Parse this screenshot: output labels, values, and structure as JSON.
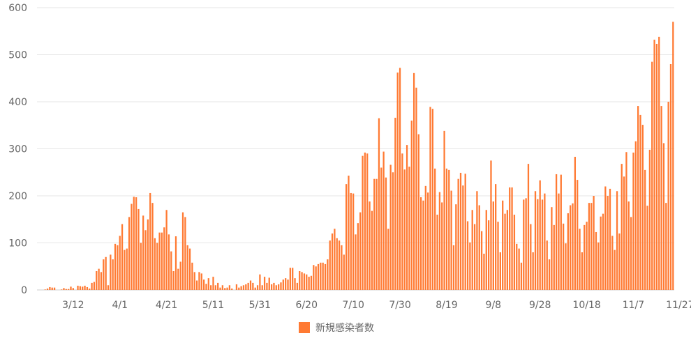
{
  "chart_data": {
    "type": "bar",
    "title": "",
    "xlabel": "",
    "ylabel": "",
    "ylim": [
      0,
      600
    ],
    "yticks": [
      0,
      100,
      200,
      300,
      400,
      500,
      600
    ],
    "grid": true,
    "legend_position": "bottom",
    "start_date": "2020-02-26",
    "x_ticks": [
      {
        "label": "3/12",
        "day": 15
      },
      {
        "label": "4/1",
        "day": 35
      },
      {
        "label": "4/21",
        "day": 55
      },
      {
        "label": "5/11",
        "day": 75
      },
      {
        "label": "5/31",
        "day": 95
      },
      {
        "label": "6/20",
        "day": 115
      },
      {
        "label": "7/10",
        "day": 135
      },
      {
        "label": "7/30",
        "day": 155
      },
      {
        "label": "8/19",
        "day": 175
      },
      {
        "label": "9/8",
        "day": 195
      },
      {
        "label": "9/28",
        "day": 215
      },
      {
        "label": "10/18",
        "day": 235
      },
      {
        "label": "11/7",
        "day": 255
      },
      {
        "label": "11/27",
        "day": 275
      }
    ],
    "series": [
      {
        "name": "新規感染者数",
        "color": "#ff7a33",
        "values": [
          0,
          0,
          0,
          1,
          3,
          6,
          5,
          5,
          0,
          0,
          1,
          4,
          2,
          2,
          7,
          4,
          0,
          9,
          8,
          7,
          9,
          6,
          3,
          15,
          17,
          40,
          45,
          38,
          65,
          70,
          10,
          75,
          65,
          98,
          95,
          115,
          140,
          85,
          88,
          155,
          183,
          198,
          197,
          172,
          100,
          158,
          127,
          150,
          206,
          185,
          110,
          100,
          122,
          122,
          133,
          170,
          118,
          82,
          40,
          114,
          45,
          60,
          165,
          155,
          95,
          88,
          58,
          38,
          20,
          38,
          35,
          22,
          13,
          25,
          10,
          28,
          10,
          15,
          5,
          10,
          4,
          5,
          10,
          3,
          0,
          12,
          5,
          8,
          10,
          12,
          15,
          20,
          15,
          5,
          10,
          33,
          10,
          28,
          15,
          26,
          12,
          15,
          10,
          12,
          16,
          22,
          25,
          22,
          47,
          47,
          25,
          15,
          40,
          38,
          35,
          33,
          28,
          30,
          53,
          50,
          55,
          58,
          58,
          55,
          65,
          105,
          120,
          130,
          110,
          105,
          95,
          75,
          225,
          243,
          206,
          205,
          118,
          142,
          165,
          285,
          292,
          290,
          188,
          168,
          236,
          236,
          365,
          260,
          294,
          239,
          130,
          266,
          250,
          366,
          462,
          472,
          290,
          256,
          308,
          262,
          360,
          461,
          430,
          331,
          197,
          190,
          221,
          207,
          389,
          385,
          258,
          160,
          208,
          186,
          338,
          258,
          255,
          211,
          95,
          182,
          236,
          249,
          222,
          247,
          146,
          101,
          170,
          140,
          210,
          180,
          125,
          77,
          170,
          148,
          275,
          188,
          225,
          145,
          80,
          190,
          162,
          170,
          218,
          218,
          160,
          98,
          88,
          58,
          192,
          195,
          268,
          140,
          80,
          210,
          193,
          233,
          192,
          205,
          105,
          65,
          176,
          138,
          246,
          205,
          245,
          141,
          99,
          163,
          180,
          184,
          283,
          234,
          130,
          80,
          138,
          145,
          185,
          185,
          200,
          123,
          101,
          156,
          162,
          220,
          200,
          215,
          115,
          85,
          210,
          120,
          268,
          241,
          293,
          188,
          155,
          292,
          316,
          391,
          372,
          351,
          255,
          179,
          298,
          485,
          532,
          523,
          538,
          391,
          312,
          185,
          400,
          480,
          570
        ]
      }
    ],
    "legend": [
      {
        "label": "新規感染者数",
        "color": "#ff7a33"
      }
    ]
  }
}
